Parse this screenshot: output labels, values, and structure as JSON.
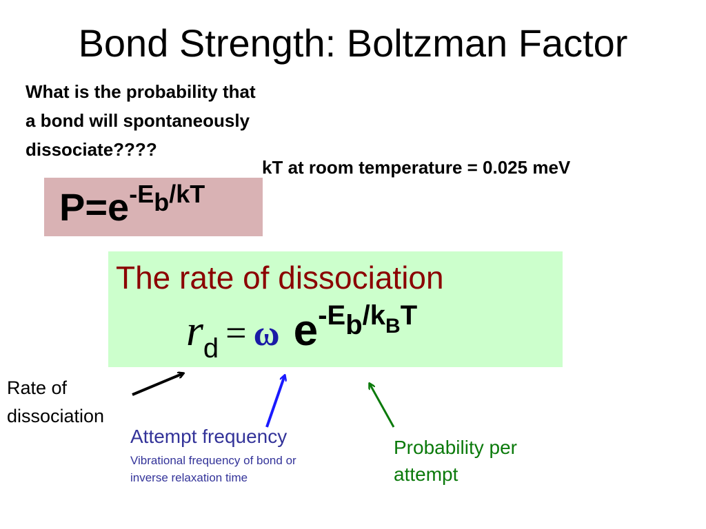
{
  "title": "Bond Strength: Boltzman Factor",
  "question": [
    "What is the probability that",
    "a bond will spontaneously",
    "dissociate????"
  ],
  "kt_note": "kT at room temperature = 0.025 meV",
  "probability_formula": {
    "base": "P=e",
    "exponent": [
      "-E",
      "b",
      "/kT"
    ]
  },
  "rate_box": {
    "heading": "The rate of dissociation",
    "formula": {
      "r": "r",
      "subscript": "d",
      "equals": "=",
      "omega": "ω",
      "e": "e",
      "exponent": [
        "-E",
        "b",
        "/k",
        "B",
        "T"
      ]
    }
  },
  "labels": {
    "rate": [
      "Rate of",
      "dissociation"
    ],
    "attempt": {
      "title": "Attempt frequency",
      "detail": [
        "Vibrational frequency of bond or",
        "inverse relaxation time"
      ]
    },
    "probability": [
      "Probability per",
      "attempt"
    ]
  }
}
